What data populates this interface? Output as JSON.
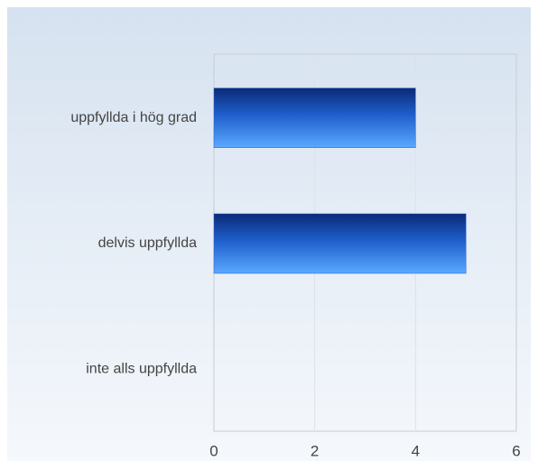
{
  "chart_data": {
    "type": "bar",
    "orientation": "horizontal",
    "categories": [
      "uppfyllda i hög grad",
      "delvis uppfyllda",
      "inte alls uppfyllda"
    ],
    "values": [
      4,
      5,
      0
    ],
    "color": "#1f5fcc",
    "xlim": [
      0,
      6
    ],
    "xticks": [
      0,
      2,
      4,
      6
    ],
    "grid": true
  }
}
